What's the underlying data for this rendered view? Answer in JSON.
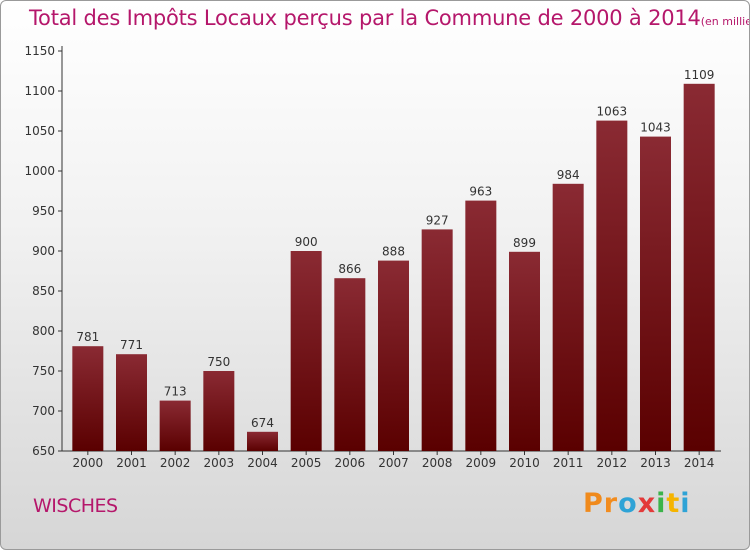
{
  "header": {
    "title": "Total des Impôts Locaux perçus par la Commune de 2000 à 2014",
    "unit": "(en milliers d'€)"
  },
  "footer": {
    "commune": "WISCHES",
    "brand": "Proxiti",
    "brand_letters": [
      "P",
      "r",
      "o",
      "x",
      "i",
      "t",
      "i"
    ]
  },
  "colors": {
    "title": "#b5176b",
    "bar_top": "#8a2a33",
    "bar_bottom": "#5a0000",
    "axis": "#333333"
  },
  "chart_data": {
    "type": "bar",
    "title": "Total des Impôts Locaux perçus par la Commune de 2000 à 2014",
    "xlabel": "",
    "ylabel": "",
    "ylim": [
      650,
      1150
    ],
    "yticks": [
      650,
      700,
      750,
      800,
      850,
      900,
      950,
      1000,
      1050,
      1100,
      1150
    ],
    "grid": false,
    "categories": [
      "2000",
      "2001",
      "2002",
      "2003",
      "2004",
      "2005",
      "2006",
      "2007",
      "2008",
      "2009",
      "2010",
      "2011",
      "2012",
      "2013",
      "2014"
    ],
    "values": [
      781,
      771,
      713,
      750,
      674,
      900,
      866,
      888,
      927,
      963,
      899,
      984,
      1063,
      1043,
      1109
    ]
  }
}
